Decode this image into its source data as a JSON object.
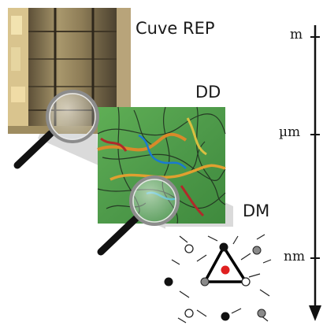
{
  "labels": {
    "reactor_vessel": "Cuve REP",
    "dislocation_dynamics": "DD",
    "molecular_dynamics": "DM"
  },
  "scale_axis": {
    "ticks": [
      "m",
      "µm",
      "nm"
    ],
    "direction": "down"
  },
  "colors": {
    "vessel": "#8a7a58",
    "dd_background": "#4e9a4a",
    "md_background": "#ffffff",
    "accent_atom": "#e02020",
    "lens_handle": "#111111"
  },
  "icons": [
    "magnifier-icon",
    "magnifier-icon",
    "scale-arrow-icon"
  ]
}
